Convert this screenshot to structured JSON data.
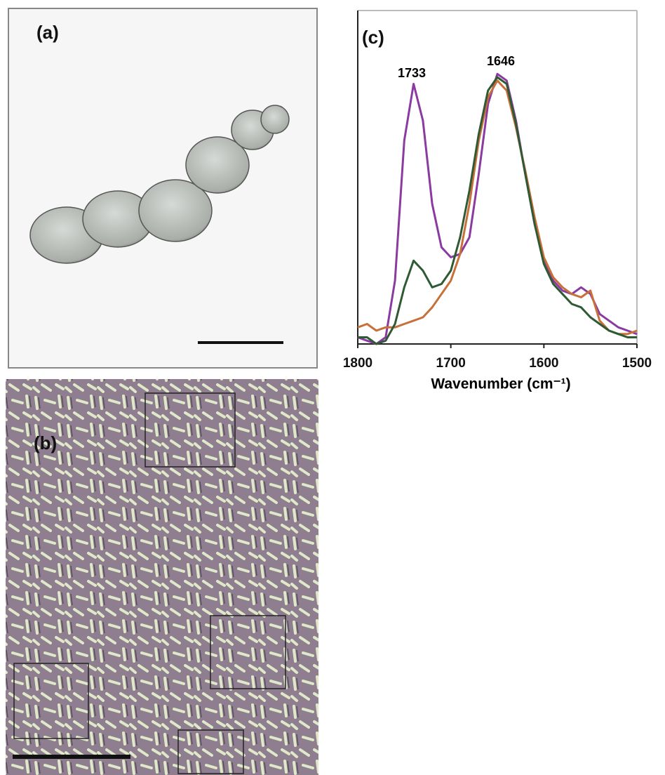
{
  "panels": {
    "a": {
      "label": "(a)"
    },
    "b": {
      "label": "(b)"
    }
  },
  "chart_data": {
    "type": "line",
    "label": "(c)",
    "xlabel": "Wavenumber (cm⁻¹)",
    "annotations": [
      "1733",
      "1646"
    ],
    "x": [
      1800,
      1790,
      1780,
      1770,
      1760,
      1750,
      1740,
      1730,
      1720,
      1710,
      1700,
      1690,
      1680,
      1670,
      1660,
      1650,
      1640,
      1630,
      1620,
      1610,
      1600,
      1590,
      1580,
      1570,
      1560,
      1550,
      1540,
      1530,
      1520,
      1510,
      1500
    ],
    "xlim": [
      1800,
      1500
    ],
    "xticks": [
      1800,
      1700,
      1600,
      1500
    ],
    "ylim": [
      0,
      1
    ],
    "series": [
      {
        "color": "#8a3aa0",
        "values": [
          0.02,
          0.01,
          0.0,
          0.02,
          0.19,
          0.61,
          0.78,
          0.67,
          0.42,
          0.29,
          0.26,
          0.27,
          0.32,
          0.51,
          0.72,
          0.81,
          0.79,
          0.67,
          0.51,
          0.36,
          0.25,
          0.19,
          0.16,
          0.15,
          0.17,
          0.15,
          0.09,
          0.07,
          0.05,
          0.04,
          0.03
        ]
      },
      {
        "color": "#c8703a",
        "values": [
          0.05,
          0.06,
          0.04,
          0.05,
          0.05,
          0.06,
          0.07,
          0.08,
          0.11,
          0.15,
          0.19,
          0.27,
          0.42,
          0.61,
          0.74,
          0.79,
          0.76,
          0.65,
          0.52,
          0.38,
          0.26,
          0.2,
          0.17,
          0.15,
          0.14,
          0.16,
          0.07,
          0.04,
          0.03,
          0.03,
          0.04
        ]
      },
      {
        "color": "#2f5a34",
        "values": [
          0.02,
          0.02,
          0.0,
          0.01,
          0.06,
          0.17,
          0.25,
          0.22,
          0.17,
          0.18,
          0.22,
          0.32,
          0.46,
          0.63,
          0.76,
          0.8,
          0.78,
          0.66,
          0.51,
          0.36,
          0.24,
          0.18,
          0.15,
          0.12,
          0.11,
          0.08,
          0.06,
          0.04,
          0.03,
          0.02,
          0.02
        ]
      }
    ]
  }
}
